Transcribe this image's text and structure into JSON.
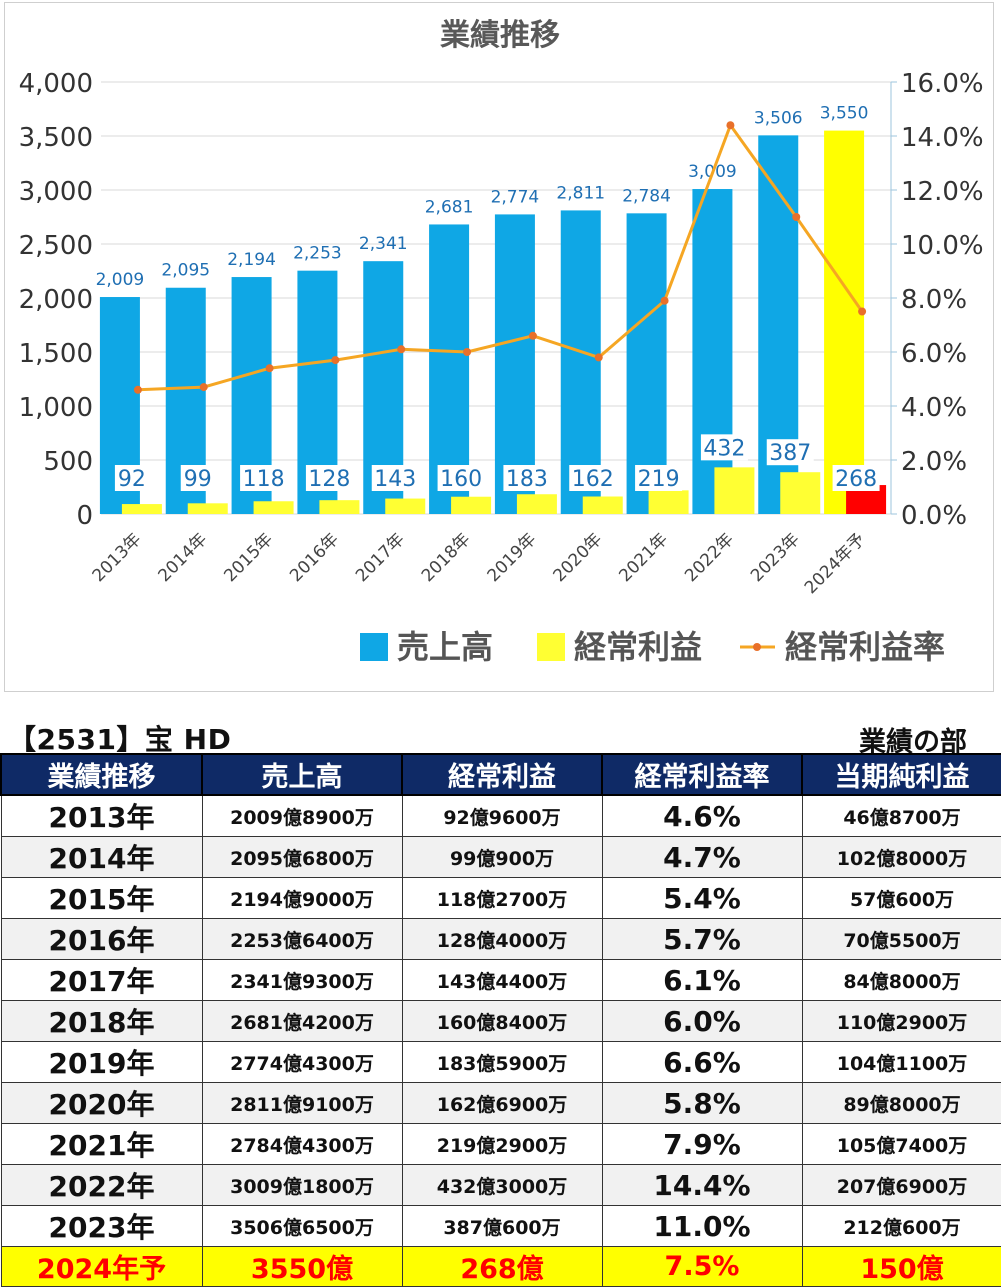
{
  "chart_data": {
    "type": "bar",
    "title": "業績推移",
    "categories": [
      "2013年",
      "2014年",
      "2015年",
      "2016年",
      "2017年",
      "2018年",
      "2019年",
      "2020年",
      "2021年",
      "2022年",
      "2023年",
      "2024年予"
    ],
    "series": [
      {
        "name": "売上高",
        "type": "bar",
        "axis": "left",
        "color": "#0fa7e5",
        "values": [
          2009,
          2095,
          2194,
          2253,
          2341,
          2681,
          2774,
          2811,
          2784,
          3009,
          3506,
          3550
        ],
        "labels": [
          "2,009",
          "2,095",
          "2,194",
          "2,253",
          "2,341",
          "2,681",
          "2,774",
          "2,811",
          "2,784",
          "3,009",
          "3,506",
          "3,550"
        ]
      },
      {
        "name": "経常利益",
        "type": "bar",
        "axis": "left",
        "color": "#ffff33",
        "values": [
          92,
          99,
          118,
          128,
          143,
          160,
          183,
          162,
          219,
          432,
          387,
          268
        ],
        "labels": [
          "92",
          "99",
          "118",
          "128",
          "143",
          "160",
          "183",
          "162",
          "219",
          "432",
          "387",
          "268"
        ]
      },
      {
        "name": "経常利益率",
        "type": "line",
        "axis": "right",
        "color": "#f5a623",
        "values": [
          4.6,
          4.7,
          5.4,
          5.7,
          6.1,
          6.0,
          6.6,
          5.8,
          7.9,
          14.4,
          11.0,
          7.5
        ]
      }
    ],
    "forecast_colors": {
      "売上高": "#ffff00",
      "経常利益": "#ff0000"
    },
    "left_axis": {
      "ylim": [
        0,
        4000
      ],
      "ticks": [
        "0",
        "500",
        "1,000",
        "1,500",
        "2,000",
        "2,500",
        "3,000",
        "3,500",
        "4,000"
      ],
      "tick_values": [
        0,
        500,
        1000,
        1500,
        2000,
        2500,
        3000,
        3500,
        4000
      ]
    },
    "right_axis": {
      "ylim": [
        0,
        16
      ],
      "ticks": [
        "0.0%",
        "2.0%",
        "4.0%",
        "6.0%",
        "8.0%",
        "10.0%",
        "12.0%",
        "14.0%",
        "16.0%"
      ],
      "tick_values": [
        0,
        2,
        4,
        6,
        8,
        10,
        12,
        14,
        16
      ]
    },
    "grid": true,
    "legend_position": "bottom-right"
  },
  "company": "【2531】宝 HD",
  "section_label": "業績の部",
  "table": {
    "headers": [
      "業績推移",
      "売上高",
      "経常利益",
      "経常利益率",
      "当期純利益"
    ],
    "rows": [
      [
        "2013年",
        "2009億8900万",
        "92億9600万",
        "4.6%",
        "46億8700万"
      ],
      [
        "2014年",
        "2095億6800万",
        "99億900万",
        "4.7%",
        "102億8000万"
      ],
      [
        "2015年",
        "2194億9000万",
        "118億2700万",
        "5.4%",
        "57億600万"
      ],
      [
        "2016年",
        "2253億6400万",
        "128億4000万",
        "5.7%",
        "70億5500万"
      ],
      [
        "2017年",
        "2341億9300万",
        "143億4400万",
        "6.1%",
        "84億8000万"
      ],
      [
        "2018年",
        "2681億4200万",
        "160億8400万",
        "6.0%",
        "110億2900万"
      ],
      [
        "2019年",
        "2774億4300万",
        "183億5900万",
        "6.6%",
        "104億1100万"
      ],
      [
        "2020年",
        "2811億9100万",
        "162億6900万",
        "5.8%",
        "89億8000万"
      ],
      [
        "2021年",
        "2784億4300万",
        "219億2900万",
        "7.9%",
        "105億7400万"
      ],
      [
        "2022年",
        "3009億1800万",
        "432億3000万",
        "14.4%",
        "207億6900万"
      ],
      [
        "2023年",
        "3506億6500万",
        "387億600万",
        "11.0%",
        "212億600万"
      ]
    ],
    "forecast_row": [
      "2024年予",
      "3550億",
      "268億",
      "7.5%",
      "150億"
    ]
  }
}
